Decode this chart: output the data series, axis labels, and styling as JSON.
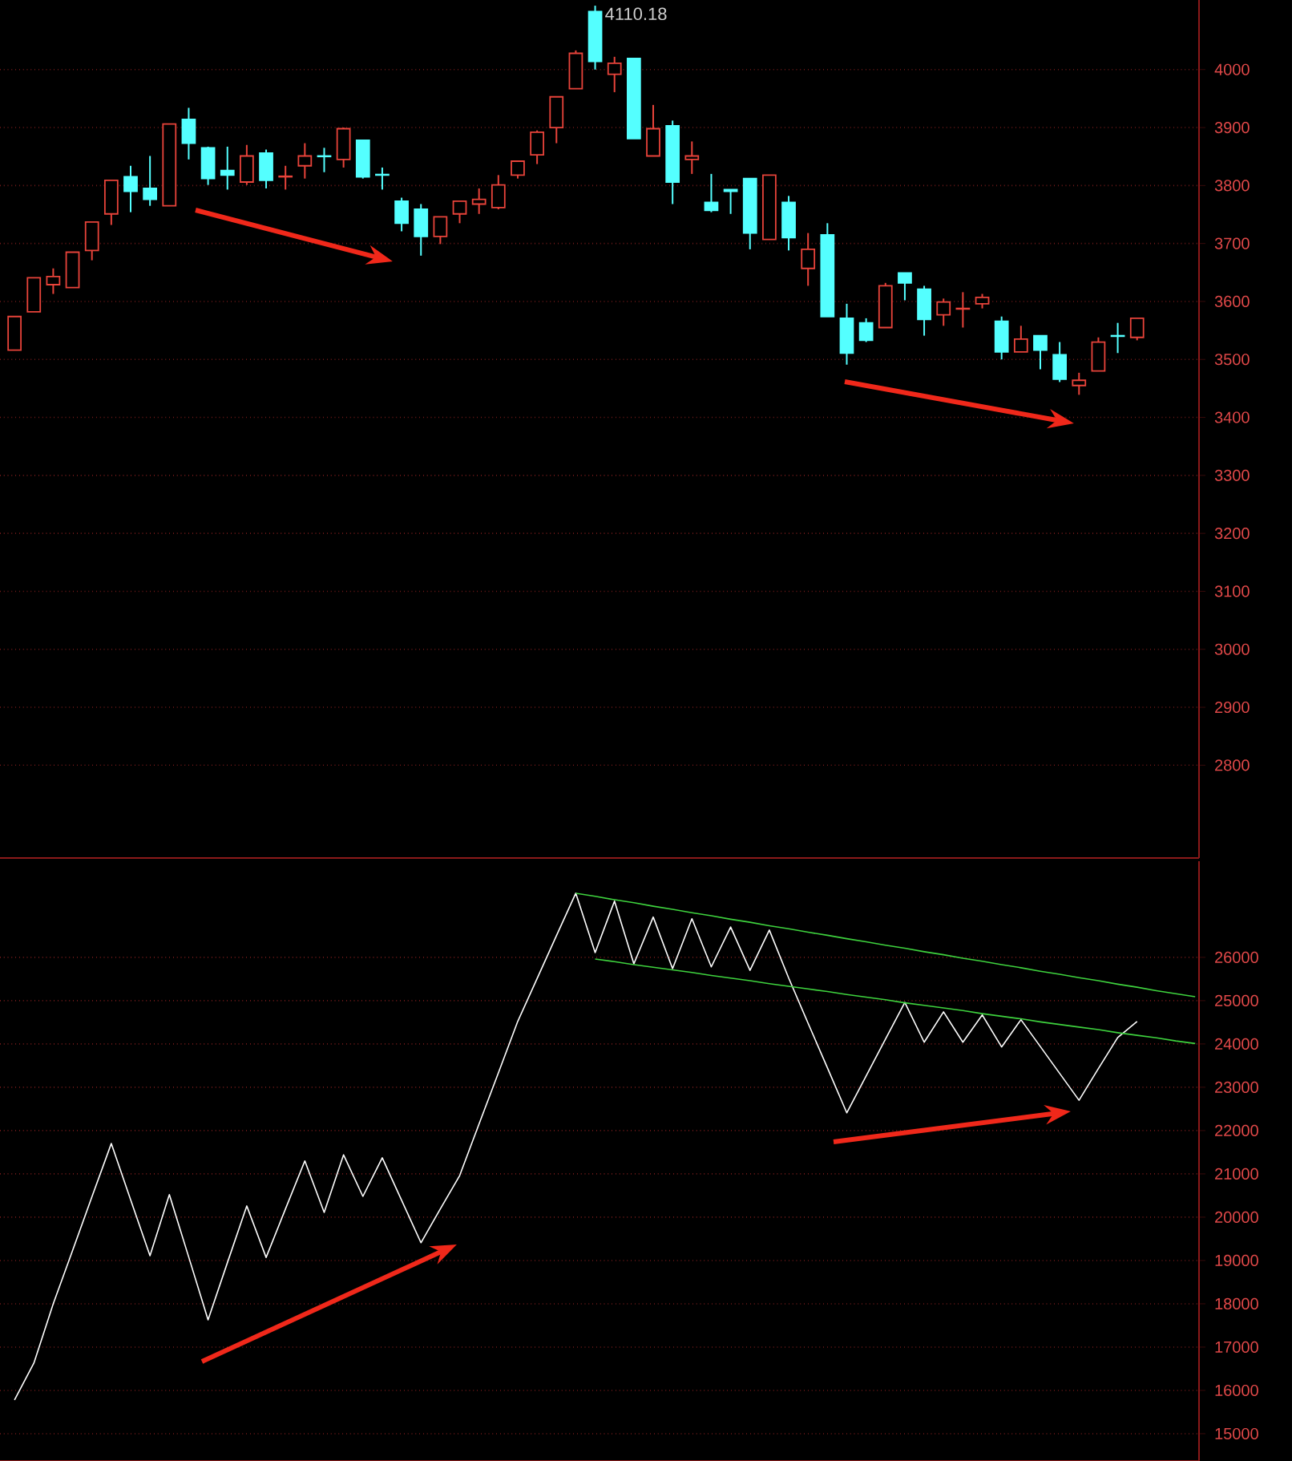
{
  "chart_data": [
    {
      "type": "candlestick",
      "categories": [
        null,
        null,
        null,
        null,
        null,
        null,
        null,
        null,
        null,
        null,
        null,
        null,
        null,
        null,
        null,
        null,
        null,
        null,
        null,
        null,
        null,
        null,
        null,
        null,
        null,
        null,
        null,
        null,
        null,
        null,
        null,
        null,
        null,
        null,
        null,
        null,
        null,
        null,
        null,
        null,
        null,
        null,
        null,
        null,
        null,
        null,
        null,
        null,
        null,
        null,
        null,
        null,
        null,
        null,
        null,
        null,
        null,
        null,
        null
      ],
      "ohlc": [
        [
          3516,
          3574,
          3516,
          3574
        ],
        [
          3582,
          3641,
          3582,
          3641
        ],
        [
          3629,
          3657,
          3613,
          3643
        ],
        [
          3624,
          3685,
          3624,
          3685
        ],
        [
          3688,
          3737,
          3671,
          3737
        ],
        [
          3751,
          3809,
          3732,
          3809
        ],
        [
          3815,
          3834,
          3754,
          3790
        ],
        [
          3795,
          3851,
          3765,
          3776
        ],
        [
          3765,
          3906,
          3765,
          3906
        ],
        [
          3914,
          3934,
          3845,
          3873
        ],
        [
          3865,
          3867,
          3801,
          3812
        ],
        [
          3826,
          3867,
          3793,
          3818
        ],
        [
          3806,
          3870,
          3801,
          3851
        ],
        [
          3856,
          3862,
          3795,
          3809
        ],
        [
          3815,
          3834,
          3793,
          3816
        ],
        [
          3834,
          3873,
          3812,
          3851
        ],
        [
          3851,
          3865,
          3823,
          3850
        ],
        [
          3845,
          3900,
          3831,
          3898
        ],
        [
          3878,
          3878,
          3812,
          3815
        ],
        [
          3819,
          3831,
          3793,
          3818
        ],
        [
          3773,
          3779,
          3721,
          3735
        ],
        [
          3759,
          3768,
          3679,
          3712
        ],
        [
          3712,
          3746,
          3699,
          3746
        ],
        [
          3751,
          3773,
          3735,
          3773
        ],
        [
          3768,
          3795,
          3751,
          3776
        ],
        [
          3762,
          3818,
          3759,
          3801
        ],
        [
          3818,
          3842,
          3812,
          3842
        ],
        [
          3853,
          3895,
          3837,
          3892
        ],
        [
          3900,
          3953,
          3873,
          3953
        ],
        [
          3967,
          4033,
          3967,
          4028
        ],
        [
          4100,
          4110.18,
          4000,
          4014
        ],
        [
          3992,
          4022,
          3961,
          4011
        ],
        [
          4019,
          4019,
          3881,
          3881
        ],
        [
          3851,
          3939,
          3851,
          3898
        ],
        [
          3903,
          3912,
          3768,
          3806
        ],
        [
          3845,
          3876,
          3820,
          3851
        ],
        [
          3771,
          3820,
          3754,
          3757
        ],
        [
          3793,
          3793,
          3751,
          3790
        ],
        [
          3812,
          3812,
          3690,
          3718
        ],
        [
          3707,
          3818,
          3707,
          3818
        ],
        [
          3771,
          3782,
          3688,
          3710
        ],
        [
          3657,
          3718,
          3627,
          3690
        ],
        [
          3715,
          3735,
          3574,
          3574
        ],
        [
          3571,
          3596,
          3491,
          3511
        ],
        [
          3563,
          3571,
          3530,
          3533
        ],
        [
          3555,
          3632,
          3555,
          3627
        ],
        [
          3649,
          3649,
          3602,
          3632
        ],
        [
          3621,
          3627,
          3541,
          3569
        ],
        [
          3577,
          3605,
          3558,
          3599
        ],
        [
          3587,
          3616,
          3555,
          3588
        ],
        [
          3596,
          3613,
          3588,
          3607
        ],
        [
          3566,
          3574,
          3500,
          3513
        ],
        [
          3513,
          3558,
          3513,
          3535
        ],
        [
          3541,
          3541,
          3483,
          3516
        ],
        [
          3508,
          3530,
          3461,
          3466
        ],
        [
          3455,
          3477,
          3439,
          3464
        ],
        [
          3480,
          3538,
          3480,
          3530
        ],
        [
          3541,
          3563,
          3511,
          3540
        ],
        [
          3538,
          3571,
          3533,
          3571
        ]
      ],
      "colors": [
        "#e8433a",
        "#e8433a",
        "#e8433a",
        "#e8433a",
        "#e8433a",
        "#e8433a",
        "#54ffff",
        "#54ffff",
        "#e8433a",
        "#54ffff",
        "#54ffff",
        "#54ffff",
        "#e8433a",
        "#54ffff",
        "#e8433a",
        "#e8433a",
        "#54ffff",
        "#e8433a",
        "#54ffff",
        "#54ffff",
        "#54ffff",
        "#54ffff",
        "#e8433a",
        "#e8433a",
        "#e8433a",
        "#e8433a",
        "#e8433a",
        "#e8433a",
        "#e8433a",
        "#e8433a",
        "#54ffff",
        "#e8433a",
        "#54ffff",
        "#e8433a",
        "#54ffff",
        "#e8433a",
        "#54ffff",
        "#54ffff",
        "#54ffff",
        "#e8433a",
        "#54ffff",
        "#e8433a",
        "#54ffff",
        "#54ffff",
        "#54ffff",
        "#e8433a",
        "#54ffff",
        "#54ffff",
        "#e8433a",
        "#e8433a",
        "#e8433a",
        "#54ffff",
        "#e8433a",
        "#54ffff",
        "#54ffff",
        "#e8433a",
        "#e8433a",
        "#54ffff",
        "#e8433a"
      ],
      "ylim": [
        2640,
        4120
      ],
      "yticks": [
        2800,
        2900,
        3000,
        3100,
        3200,
        3300,
        3400,
        3500,
        3600,
        3700,
        3800,
        3900,
        4000
      ],
      "grid": "y",
      "tick_labels": "y",
      "annotations": [
        "4110.18"
      ]
    },
    {
      "type": "line",
      "categories": [
        null,
        null,
        null,
        null,
        null,
        null,
        null,
        null,
        null,
        null,
        null,
        null,
        null,
        null,
        null,
        null,
        null,
        null,
        null,
        null,
        null,
        null,
        null,
        null,
        null,
        null,
        null,
        null,
        null,
        null,
        null,
        null,
        null,
        null,
        null,
        null,
        null,
        null,
        null,
        null,
        null,
        null,
        null,
        null,
        null,
        null,
        null,
        null,
        null,
        null,
        null,
        null,
        null,
        null,
        null,
        null,
        null,
        null,
        null,
        null,
        null,
        null
      ],
      "series": [
        {
          "color": "#ffffff",
          "values": [
            15780,
            16630,
            18000,
            19230,
            20470,
            21700,
            20400,
            19110,
            20520,
            19080,
            17630,
            18950,
            20260,
            19070,
            20190,
            21300,
            20110,
            21440,
            20480,
            21370,
            20390,
            19410,
            20190,
            20960,
            22150,
            23330,
            24520,
            25510,
            26500,
            27480,
            26110,
            27300,
            25850,
            26930,
            25740,
            26890,
            25780,
            26700,
            25700,
            26630,
            25520,
            24480,
            23450,
            22410,
            23260,
            24110,
            24960,
            24040,
            24740,
            24040,
            24670,
            23930,
            24560,
            23940,
            23320,
            22700,
            23430,
            24150,
            24520,
            null,
            null,
            null
          ]
        },
        {
          "color": "#3ed23e",
          "values": [
            null,
            null,
            null,
            null,
            null,
            null,
            null,
            null,
            null,
            null,
            null,
            null,
            null,
            null,
            null,
            null,
            null,
            null,
            null,
            null,
            null,
            null,
            null,
            null,
            null,
            null,
            null,
            null,
            null,
            27480,
            27410,
            27330,
            27260,
            27180,
            27110,
            27030,
            26960,
            26880,
            26810,
            26730,
            26660,
            26580,
            26510,
            26430,
            26360,
            26280,
            26210,
            26130,
            26060,
            25980,
            25910,
            25830,
            25760,
            25680,
            25610,
            25530,
            25460,
            25380,
            25310,
            25230,
            25160,
            25090
          ]
        },
        {
          "color": "#3ed23e",
          "values": [
            null,
            null,
            null,
            null,
            null,
            null,
            null,
            null,
            null,
            null,
            null,
            null,
            null,
            null,
            null,
            null,
            null,
            null,
            null,
            null,
            null,
            null,
            null,
            null,
            null,
            null,
            null,
            null,
            null,
            null,
            25960,
            25900,
            25830,
            25770,
            25710,
            25650,
            25580,
            25520,
            25460,
            25390,
            25330,
            25270,
            25210,
            25140,
            25080,
            25020,
            24950,
            24890,
            24830,
            24770,
            24700,
            24640,
            24580,
            24510,
            24450,
            24390,
            24330,
            24260,
            24200,
            24140,
            24070,
            24010
          ]
        }
      ],
      "ylim": [
        14370,
        28220
      ],
      "yticks": [
        15000,
        16000,
        17000,
        18000,
        19000,
        20000,
        21000,
        22000,
        23000,
        24000,
        25000,
        26000
      ],
      "grid": "y",
      "tick_labels": "y"
    }
  ]
}
